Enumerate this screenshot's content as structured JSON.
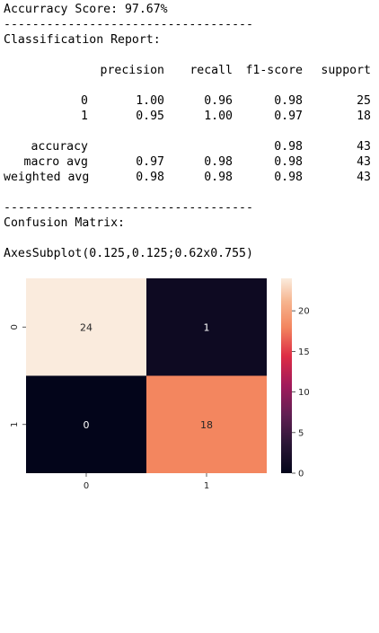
{
  "output": {
    "accuracy_line": "Accurracy Score: 97.67%",
    "separator": "-----------------------------------",
    "report_title": "Classification Report:",
    "headers": [
      "precision",
      "recall",
      "f1-score",
      "support"
    ],
    "class_rows": [
      {
        "label": "0",
        "precision": "1.00",
        "recall": "0.96",
        "f1": "0.98",
        "support": "25"
      },
      {
        "label": "1",
        "precision": "0.95",
        "recall": "1.00",
        "f1": "0.97",
        "support": "18"
      }
    ],
    "accuracy_row": {
      "label": "accuracy",
      "f1": "0.98",
      "support": "43"
    },
    "avg_rows": [
      {
        "label": "macro avg",
        "precision": "0.97",
        "recall": "0.98",
        "f1": "0.98",
        "support": "43"
      },
      {
        "label": "weighted avg",
        "precision": "0.98",
        "recall": "0.98",
        "f1": "0.98",
        "support": "43"
      }
    ],
    "matrix_title": "Confusion Matrix:",
    "axes_repr": "AxesSubplot(0.125,0.125;0.62x0.755)"
  },
  "colors": {
    "high": "#faebdd",
    "mid": "#f3865f",
    "low": "#03051a"
  },
  "chart_data": {
    "type": "heatmap",
    "rows": [
      "0",
      "1"
    ],
    "cols": [
      "0",
      "1"
    ],
    "values": [
      [
        24,
        1
      ],
      [
        0,
        18
      ]
    ],
    "annotations": [
      "24",
      "1",
      "0",
      "18"
    ],
    "colorbar": {
      "min": 0,
      "max": 24,
      "ticks": [
        0,
        5,
        10,
        15,
        20
      ]
    },
    "colormap": "rocket"
  }
}
